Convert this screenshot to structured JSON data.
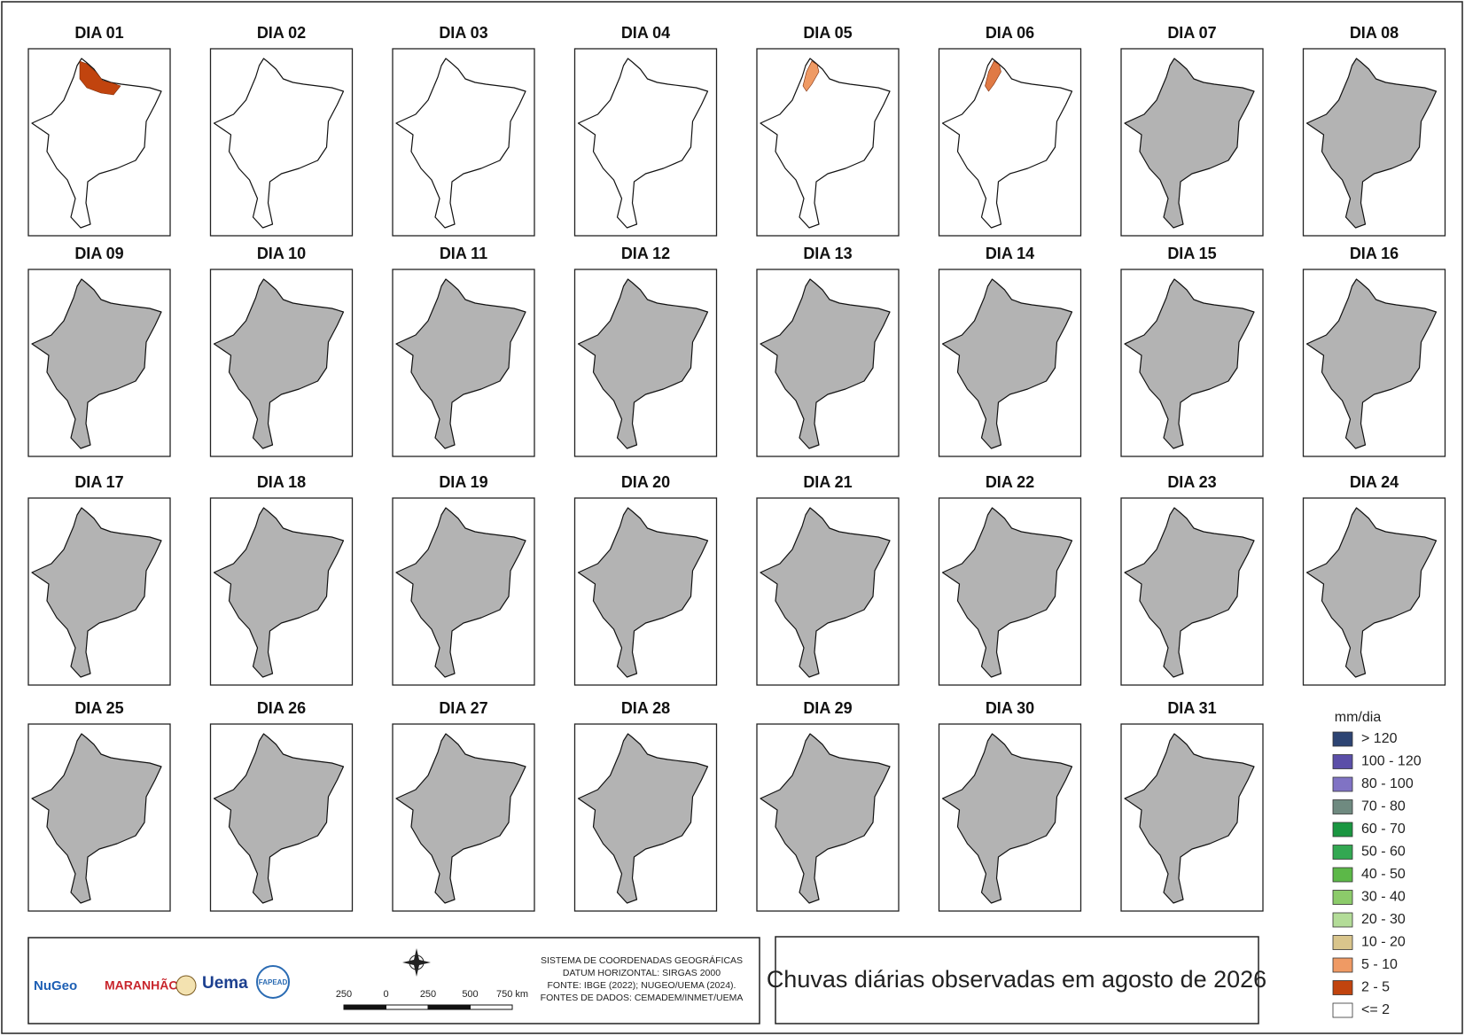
{
  "days": [
    {
      "label": "DIA 01",
      "fill": "#ffffff",
      "rain": "#c1440e"
    },
    {
      "label": "DIA 02",
      "fill": "#ffffff"
    },
    {
      "label": "DIA 03",
      "fill": "#ffffff"
    },
    {
      "label": "DIA 04",
      "fill": "#ffffff"
    },
    {
      "label": "DIA 05",
      "fill": "#ffffff",
      "rain": "#ef9a64"
    },
    {
      "label": "DIA 06",
      "fill": "#ffffff",
      "rain": "#e07a45"
    },
    {
      "label": "DIA 07",
      "fill": "#b3b3b3"
    },
    {
      "label": "DIA 08",
      "fill": "#b3b3b3"
    },
    {
      "label": "DIA 09",
      "fill": "#b3b3b3"
    },
    {
      "label": "DIA 10",
      "fill": "#b3b3b3"
    },
    {
      "label": "DIA 11",
      "fill": "#b3b3b3"
    },
    {
      "label": "DIA 12",
      "fill": "#b3b3b3"
    },
    {
      "label": "DIA 13",
      "fill": "#b3b3b3"
    },
    {
      "label": "DIA 14",
      "fill": "#b3b3b3"
    },
    {
      "label": "DIA 15",
      "fill": "#b3b3b3"
    },
    {
      "label": "DIA 16",
      "fill": "#b3b3b3"
    },
    {
      "label": "DIA 17",
      "fill": "#b3b3b3"
    },
    {
      "label": "DIA 18",
      "fill": "#b3b3b3"
    },
    {
      "label": "DIA 19",
      "fill": "#b3b3b3"
    },
    {
      "label": "DIA 20",
      "fill": "#b3b3b3"
    },
    {
      "label": "DIA 21",
      "fill": "#b3b3b3"
    },
    {
      "label": "DIA 22",
      "fill": "#b3b3b3"
    },
    {
      "label": "DIA 23",
      "fill": "#b3b3b3"
    },
    {
      "label": "DIA 24",
      "fill": "#b3b3b3"
    },
    {
      "label": "DIA 25",
      "fill": "#b3b3b3"
    },
    {
      "label": "DIA 26",
      "fill": "#b3b3b3"
    },
    {
      "label": "DIA 27",
      "fill": "#b3b3b3"
    },
    {
      "label": "DIA 28",
      "fill": "#b3b3b3"
    },
    {
      "label": "DIA 29",
      "fill": "#b3b3b3"
    },
    {
      "label": "DIA 30",
      "fill": "#b3b3b3"
    },
    {
      "label": "DIA 31",
      "fill": "#b3b3b3"
    }
  ],
  "legend": {
    "title": "mm/dia",
    "items": [
      {
        "label": "> 120",
        "color": "#2d4473"
      },
      {
        "label": "100 - 120",
        "color": "#5b4fa8"
      },
      {
        "label": "80 - 100",
        "color": "#8073c4"
      },
      {
        "label": "70 - 80",
        "color": "#6f8a80"
      },
      {
        "label": "60 - 70",
        "color": "#1a9641"
      },
      {
        "label": "50 - 60",
        "color": "#33a852"
      },
      {
        "label": "40 - 50",
        "color": "#5cb848"
      },
      {
        "label": "30 - 40",
        "color": "#8ccb6a"
      },
      {
        "label": "20 - 30",
        "color": "#b3dc98"
      },
      {
        "label": "10 - 20",
        "color": "#d9c58c"
      },
      {
        "label": "5 - 10",
        "color": "#ef9a64"
      },
      {
        "label": "2 - 5",
        "color": "#c1440e"
      },
      {
        "label": "<= 2",
        "color": "#ffffff"
      }
    ]
  },
  "title": "Chuvas diárias observadas em agosto de 2026",
  "credits": [
    "SISTEMA DE COORDENADAS GEOGRÁFICAS",
    "DATUM HORIZONTAL: SIRGAS 2000",
    "FONTE: IBGE (2022); NUGEO/UEMA (2024).",
    "FONTES DE DADOS: CEMADEM/INMET/UEMA"
  ],
  "scale": [
    "250",
    "0",
    "250",
    "500",
    "750 km"
  ],
  "logos": [
    "NuGeo",
    "MARANHÃO",
    "Uema",
    "FAPEAD"
  ]
}
